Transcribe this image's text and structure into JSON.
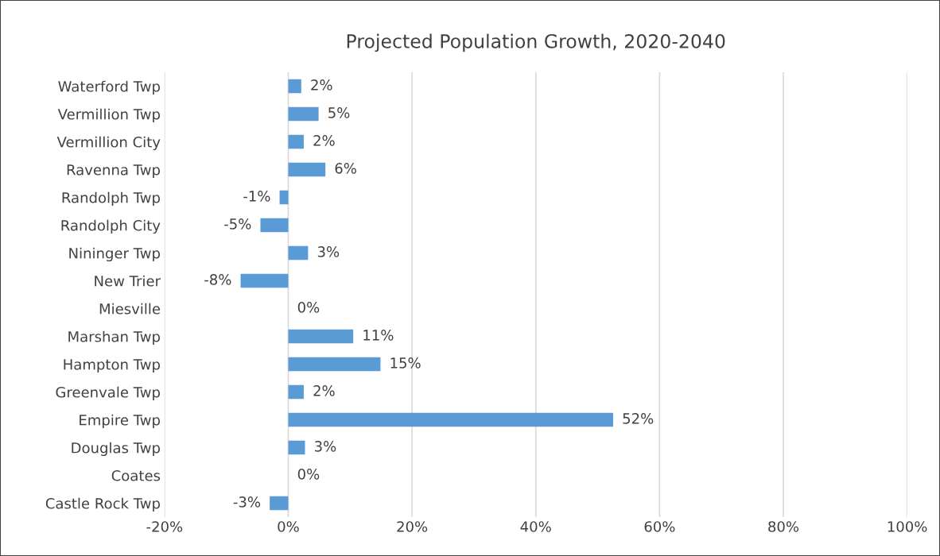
{
  "chart_data": {
    "type": "bar",
    "orientation": "horizontal",
    "title": "Projected Population Growth, 2020-2040",
    "categories": [
      "Waterford Twp",
      "Vermillion Twp",
      "Vermillion City",
      "Ravenna Twp",
      "Randolph Twp",
      "Randolph City",
      "Nininger Twp",
      "New Trier",
      "Miesville",
      "Marshan Twp",
      "Hampton Twp",
      "Greenvale Twp",
      "Empire Twp",
      "Douglas Twp",
      "Coates",
      "Castle Rock Twp"
    ],
    "values": [
      2.1,
      4.9,
      2.5,
      6.0,
      -1.4,
      -4.5,
      3.2,
      -7.7,
      0,
      10.5,
      14.9,
      2.5,
      52.5,
      2.7,
      0,
      -3.0
    ],
    "value_labels": [
      "2%",
      "5%",
      "2%",
      "6%",
      "-1%",
      "-5%",
      "3%",
      "-8%",
      "0%",
      "11%",
      "15%",
      "2%",
      "52%",
      "3%",
      "0%",
      "-3%"
    ],
    "color": "#5b9bd5",
    "xlim": [
      -20,
      100
    ],
    "xticks": [
      {
        "value": -20,
        "label": "-20%"
      },
      {
        "value": 0,
        "label": "0%"
      },
      {
        "value": 20,
        "label": "20%"
      },
      {
        "value": 40,
        "label": "40%"
      },
      {
        "value": 60,
        "label": "60%"
      },
      {
        "value": 80,
        "label": "80%"
      },
      {
        "value": 100,
        "label": "100%"
      }
    ],
    "grid": "x"
  }
}
